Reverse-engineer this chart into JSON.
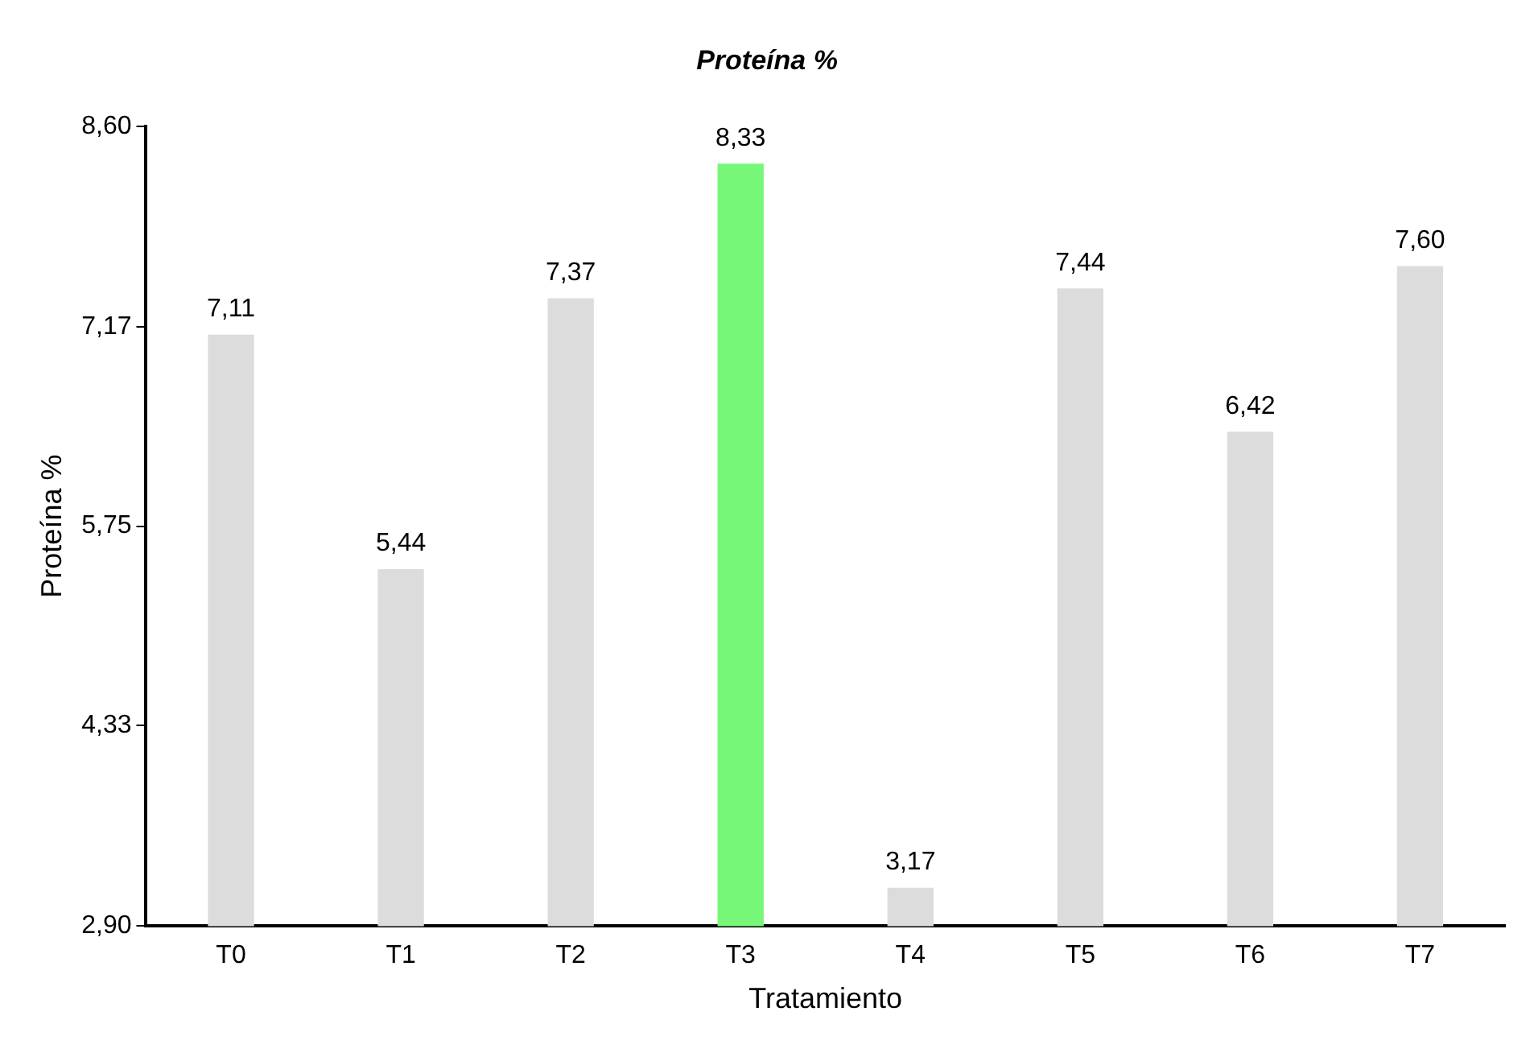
{
  "chart_data": {
    "type": "bar",
    "title": "Proteína %",
    "xlabel": "Tratamiento",
    "ylabel": "Proteína %",
    "categories": [
      "T0",
      "T1",
      "T2",
      "T3",
      "T4",
      "T5",
      "T6",
      "T7"
    ],
    "values": [
      7.11,
      5.44,
      7.37,
      8.33,
      3.17,
      7.44,
      6.42,
      7.6
    ],
    "colors": [
      "#dcdcdc",
      "#dcdcdc",
      "#dcdcdc",
      "#77f777",
      "#dcdcdc",
      "#dcdcdc",
      "#dcdcdc",
      "#dcdcdc"
    ],
    "value_labels": [
      "7,11",
      "5,44",
      "7,37",
      "8,33",
      "3,17",
      "7,44",
      "6,42",
      "7,60"
    ],
    "ylim": [
      2.9,
      8.6
    ],
    "yticks": [
      {
        "value": 2.9,
        "label": "2,90"
      },
      {
        "value": 4.33,
        "label": "4,33"
      },
      {
        "value": 5.75,
        "label": "5,75"
      },
      {
        "value": 7.17,
        "label": "7,17"
      },
      {
        "value": 8.6,
        "label": "8,60"
      }
    ],
    "grid": false,
    "legend": false
  }
}
